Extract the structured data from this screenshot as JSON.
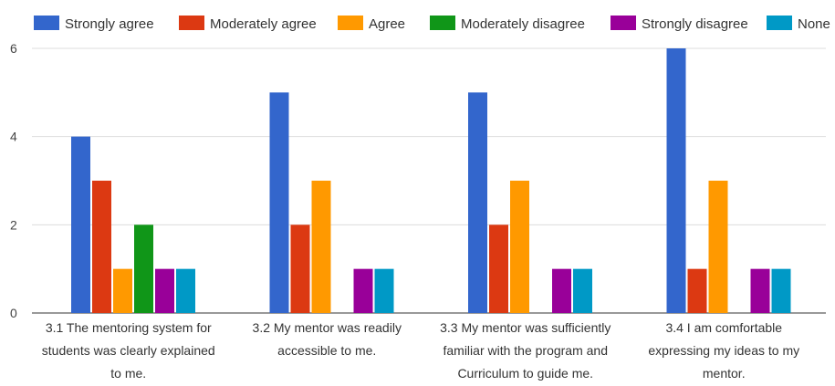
{
  "chart_data": {
    "type": "bar",
    "categories": [
      [
        "3.1 The mentoring system for",
        "students was clearly explained",
        "to me."
      ],
      [
        "3.2 My mentor was readily",
        "accessible to me."
      ],
      [
        "3.3 My mentor was sufficiently",
        "familiar with the program and",
        "Curriculum to guide me."
      ],
      [
        "3.4 I am comfortable",
        "expressing my ideas to my",
        "mentor."
      ]
    ],
    "series": [
      {
        "name": "Strongly agree",
        "color": "#3366cc",
        "values": [
          4,
          5,
          5,
          6
        ]
      },
      {
        "name": "Moderately agree",
        "color": "#dc3912",
        "values": [
          3,
          2,
          2,
          1
        ]
      },
      {
        "name": "Agree",
        "color": "#ff9900",
        "values": [
          1,
          3,
          3,
          3
        ]
      },
      {
        "name": "Moderately disagree",
        "color": "#109618",
        "values": [
          2,
          0,
          0,
          0
        ]
      },
      {
        "name": "Strongly disagree",
        "color": "#990099",
        "values": [
          1,
          1,
          1,
          1
        ]
      },
      {
        "name": "None",
        "color": "#0099c6",
        "values": [
          1,
          1,
          1,
          1
        ]
      }
    ],
    "ylim": [
      0,
      6
    ],
    "yticks": [
      "0",
      "2",
      "4",
      "6"
    ],
    "grid": true,
    "legend_position": "top"
  }
}
